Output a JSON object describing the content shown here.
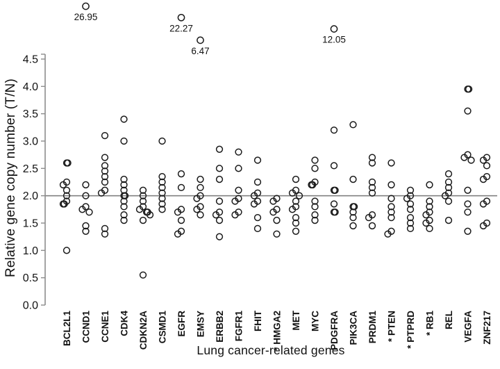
{
  "figure": {
    "background": "#ffffff",
    "point_color": "#1a1a1a",
    "axis_color": "#8c8c8c",
    "text_color": "#111111",
    "refline_color": "#808080"
  },
  "chart_data": {
    "type": "scatter",
    "title": "",
    "xlabel": "Lung cancer-related genes",
    "ylabel": "Relative gene copy number (T/N)",
    "ylim": [
      0.0,
      4.5
    ],
    "ytick_step": 0.5,
    "y_tick_labels": [
      "0.0",
      "0.5",
      "1.0",
      "1.5",
      "2.0",
      "2.5",
      "3.0",
      "3.5",
      "4.0",
      "4.5"
    ],
    "reference_line": 2.0,
    "grid": false,
    "legend": false,
    "deleted_gene_marker": "*",
    "genes": [
      {
        "name": "BCL2L1",
        "asterisk": false,
        "values": [
          2.6,
          2.6,
          2.25,
          2.2,
          2.1,
          2.0,
          1.9,
          1.85,
          1.85,
          1.0
        ]
      },
      {
        "name": "CCND1",
        "asterisk": false,
        "values": [
          2.2,
          2.0,
          1.8,
          1.75,
          1.7,
          1.45,
          1.35
        ]
      },
      {
        "name": "CCNE1",
        "asterisk": false,
        "values": [
          3.1,
          2.7,
          2.55,
          2.45,
          2.35,
          2.25,
          2.1,
          2.05,
          1.4,
          1.3
        ]
      },
      {
        "name": "CDK4",
        "asterisk": false,
        "values": [
          3.4,
          3.0,
          2.3,
          2.2,
          2.1,
          2.0,
          2.0,
          1.9,
          1.8,
          1.65,
          1.55
        ]
      },
      {
        "name": "CDKN2A",
        "asterisk": false,
        "values": [
          2.1,
          2.0,
          1.9,
          1.8,
          1.75,
          1.7,
          1.7,
          1.65,
          1.55,
          0.55
        ]
      },
      {
        "name": "CSMD1",
        "asterisk": false,
        "values": [
          3.0,
          2.35,
          2.25,
          2.15,
          2.05,
          1.95,
          1.85,
          1.75
        ]
      },
      {
        "name": "EGFR",
        "asterisk": false,
        "values": [
          2.4,
          2.15,
          1.75,
          1.7,
          1.55,
          1.35,
          1.3
        ]
      },
      {
        "name": "EMSY",
        "asterisk": false,
        "values": [
          2.3,
          2.15,
          2.0,
          1.95,
          1.8,
          1.75,
          1.65
        ]
      },
      {
        "name": "ERBB2",
        "asterisk": false,
        "values": [
          2.85,
          2.5,
          2.3,
          1.9,
          1.7,
          1.65,
          1.55,
          1.25
        ]
      },
      {
        "name": "FGFR1",
        "asterisk": false,
        "values": [
          2.8,
          2.5,
          2.1,
          1.95,
          1.9,
          1.7,
          1.65
        ]
      },
      {
        "name": "FHIT",
        "asterisk": false,
        "values": [
          2.65,
          2.25,
          2.05,
          2.0,
          1.9,
          1.85,
          1.6,
          1.4
        ]
      },
      {
        "name": "HMGA2",
        "asterisk": true,
        "values": [
          1.95,
          1.9,
          1.75,
          1.7,
          1.55,
          1.3
        ]
      },
      {
        "name": "MET",
        "asterisk": false,
        "values": [
          2.3,
          2.1,
          2.05,
          2.0,
          1.9,
          1.8,
          1.75,
          1.6,
          1.5,
          1.35
        ]
      },
      {
        "name": "MYC",
        "asterisk": false,
        "values": [
          2.65,
          2.5,
          2.25,
          2.2,
          2.2,
          1.9,
          1.8,
          1.65,
          1.55
        ]
      },
      {
        "name": "PDGFRA",
        "asterisk": false,
        "values": [
          3.2,
          2.55,
          2.1,
          2.1,
          1.85,
          1.7,
          1.7
        ]
      },
      {
        "name": "PIK3CA",
        "asterisk": false,
        "values": [
          3.3,
          2.3,
          1.8,
          1.8,
          1.7,
          1.6,
          1.45
        ]
      },
      {
        "name": "PRDM1",
        "asterisk": false,
        "values": [
          2.7,
          2.6,
          2.25,
          2.15,
          2.05,
          1.65,
          1.6,
          1.45
        ]
      },
      {
        "name": "PTEN",
        "asterisk": true,
        "values": [
          2.6,
          2.2,
          1.95,
          1.8,
          1.7,
          1.6,
          1.35,
          1.3
        ]
      },
      {
        "name": "PTPRD",
        "asterisk": true,
        "values": [
          2.1,
          2.0,
          1.95,
          1.85,
          1.75,
          1.6,
          1.5,
          1.4
        ]
      },
      {
        "name": "RB1",
        "asterisk": true,
        "values": [
          2.2,
          1.9,
          1.8,
          1.7,
          1.65,
          1.55,
          1.5,
          1.4
        ]
      },
      {
        "name": "REL",
        "asterisk": false,
        "values": [
          2.4,
          2.25,
          2.15,
          2.05,
          2.0,
          1.9,
          1.55
        ]
      },
      {
        "name": "VEGFA",
        "asterisk": false,
        "values": [
          3.95,
          3.95,
          3.55,
          2.75,
          2.7,
          2.65,
          2.1,
          1.85,
          1.7,
          1.35
        ]
      },
      {
        "name": "ZNF217",
        "asterisk": false,
        "values": [
          2.7,
          2.65,
          2.55,
          2.35,
          2.3,
          1.9,
          1.85,
          1.5,
          1.45
        ]
      }
    ],
    "outliers": [
      {
        "gene": "CCND1",
        "label": "26.95",
        "value": 26.95
      },
      {
        "gene": "EGFR",
        "label": "22.27",
        "value": 22.27
      },
      {
        "gene": "EMSY",
        "label": "6.47",
        "value": 6.47
      },
      {
        "gene": "PDGFRA",
        "label": "12.05",
        "value": 12.05
      }
    ]
  }
}
